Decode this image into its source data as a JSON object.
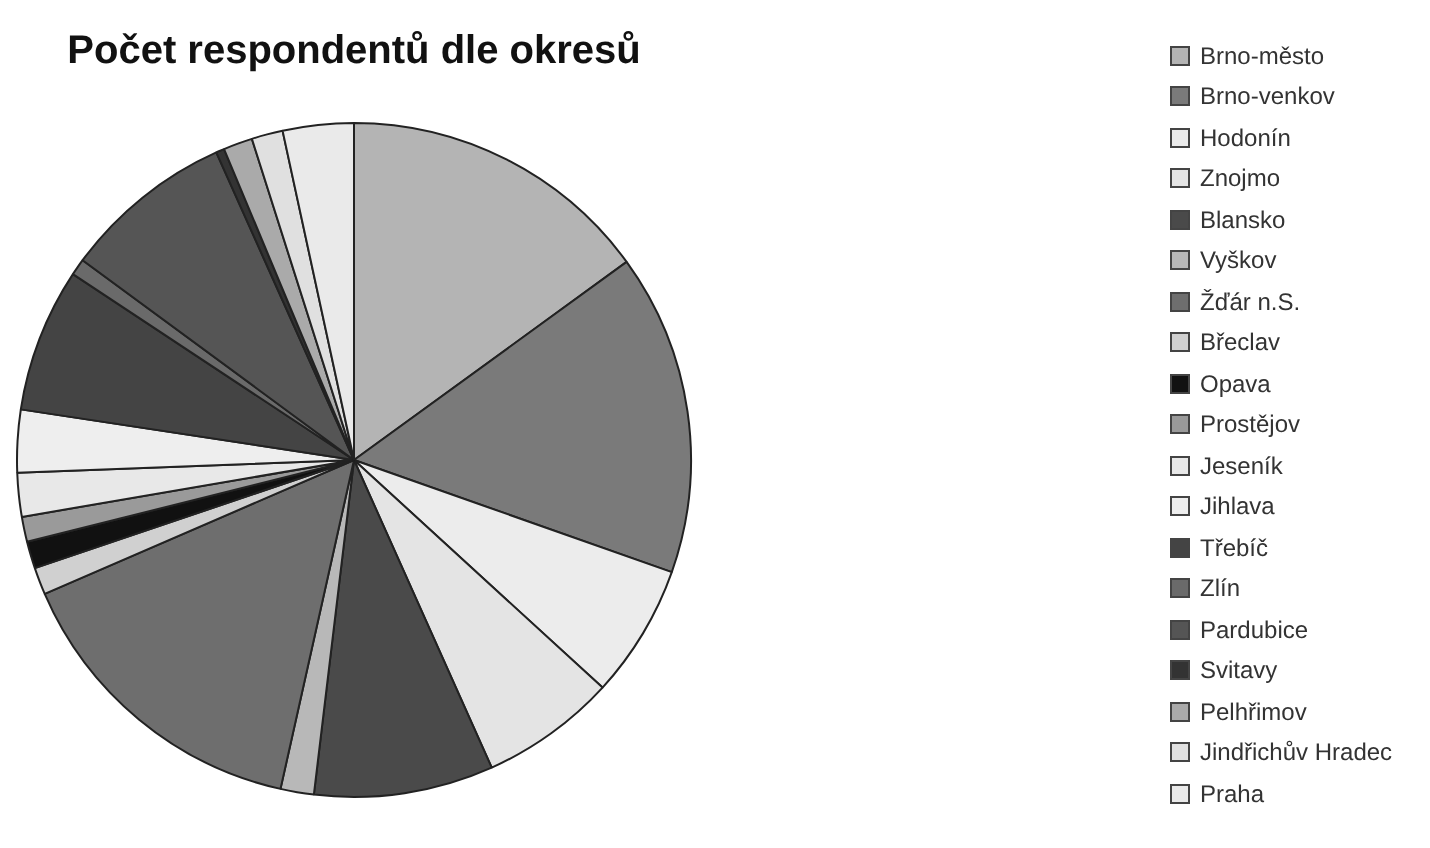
{
  "chart_data": {
    "type": "pie",
    "title": "Počet respondentů dle okresů",
    "categories": [
      "Brno-město",
      "Brno-venkov",
      "Hodonín",
      "Znojmo",
      "Blansko",
      "Vyškov",
      "Žďár n.S.",
      "Břeclav",
      "Opava",
      "Prostějov",
      "Jeseník",
      "Jihlava",
      "Třebíč",
      "Zlín",
      "Pardubice",
      "Svitavy",
      "Pelhřimov",
      "Jindřichův Hradec",
      "Praha"
    ],
    "values": [
      15.0,
      15.4,
      6.4,
      6.5,
      8.6,
      1.6,
      15.0,
      1.3,
      1.3,
      1.2,
      2.1,
      3.0,
      6.9,
      0.8,
      8.2,
      0.4,
      1.4,
      1.5,
      3.4
    ],
    "colors": [
      "#b4b4b4",
      "#7a7a7a",
      "#ececec",
      "#e4e4e4",
      "#4a4a4a",
      "#b8b8b8",
      "#6e6e6e",
      "#d0d0d0",
      "#111111",
      "#9a9a9a",
      "#e8e8e8",
      "#eeeeee",
      "#444444",
      "#6a6a6a",
      "#555555",
      "#333333",
      "#aaaaaa",
      "#e0e0e0",
      "#eaeaea"
    ],
    "legend": "right"
  }
}
